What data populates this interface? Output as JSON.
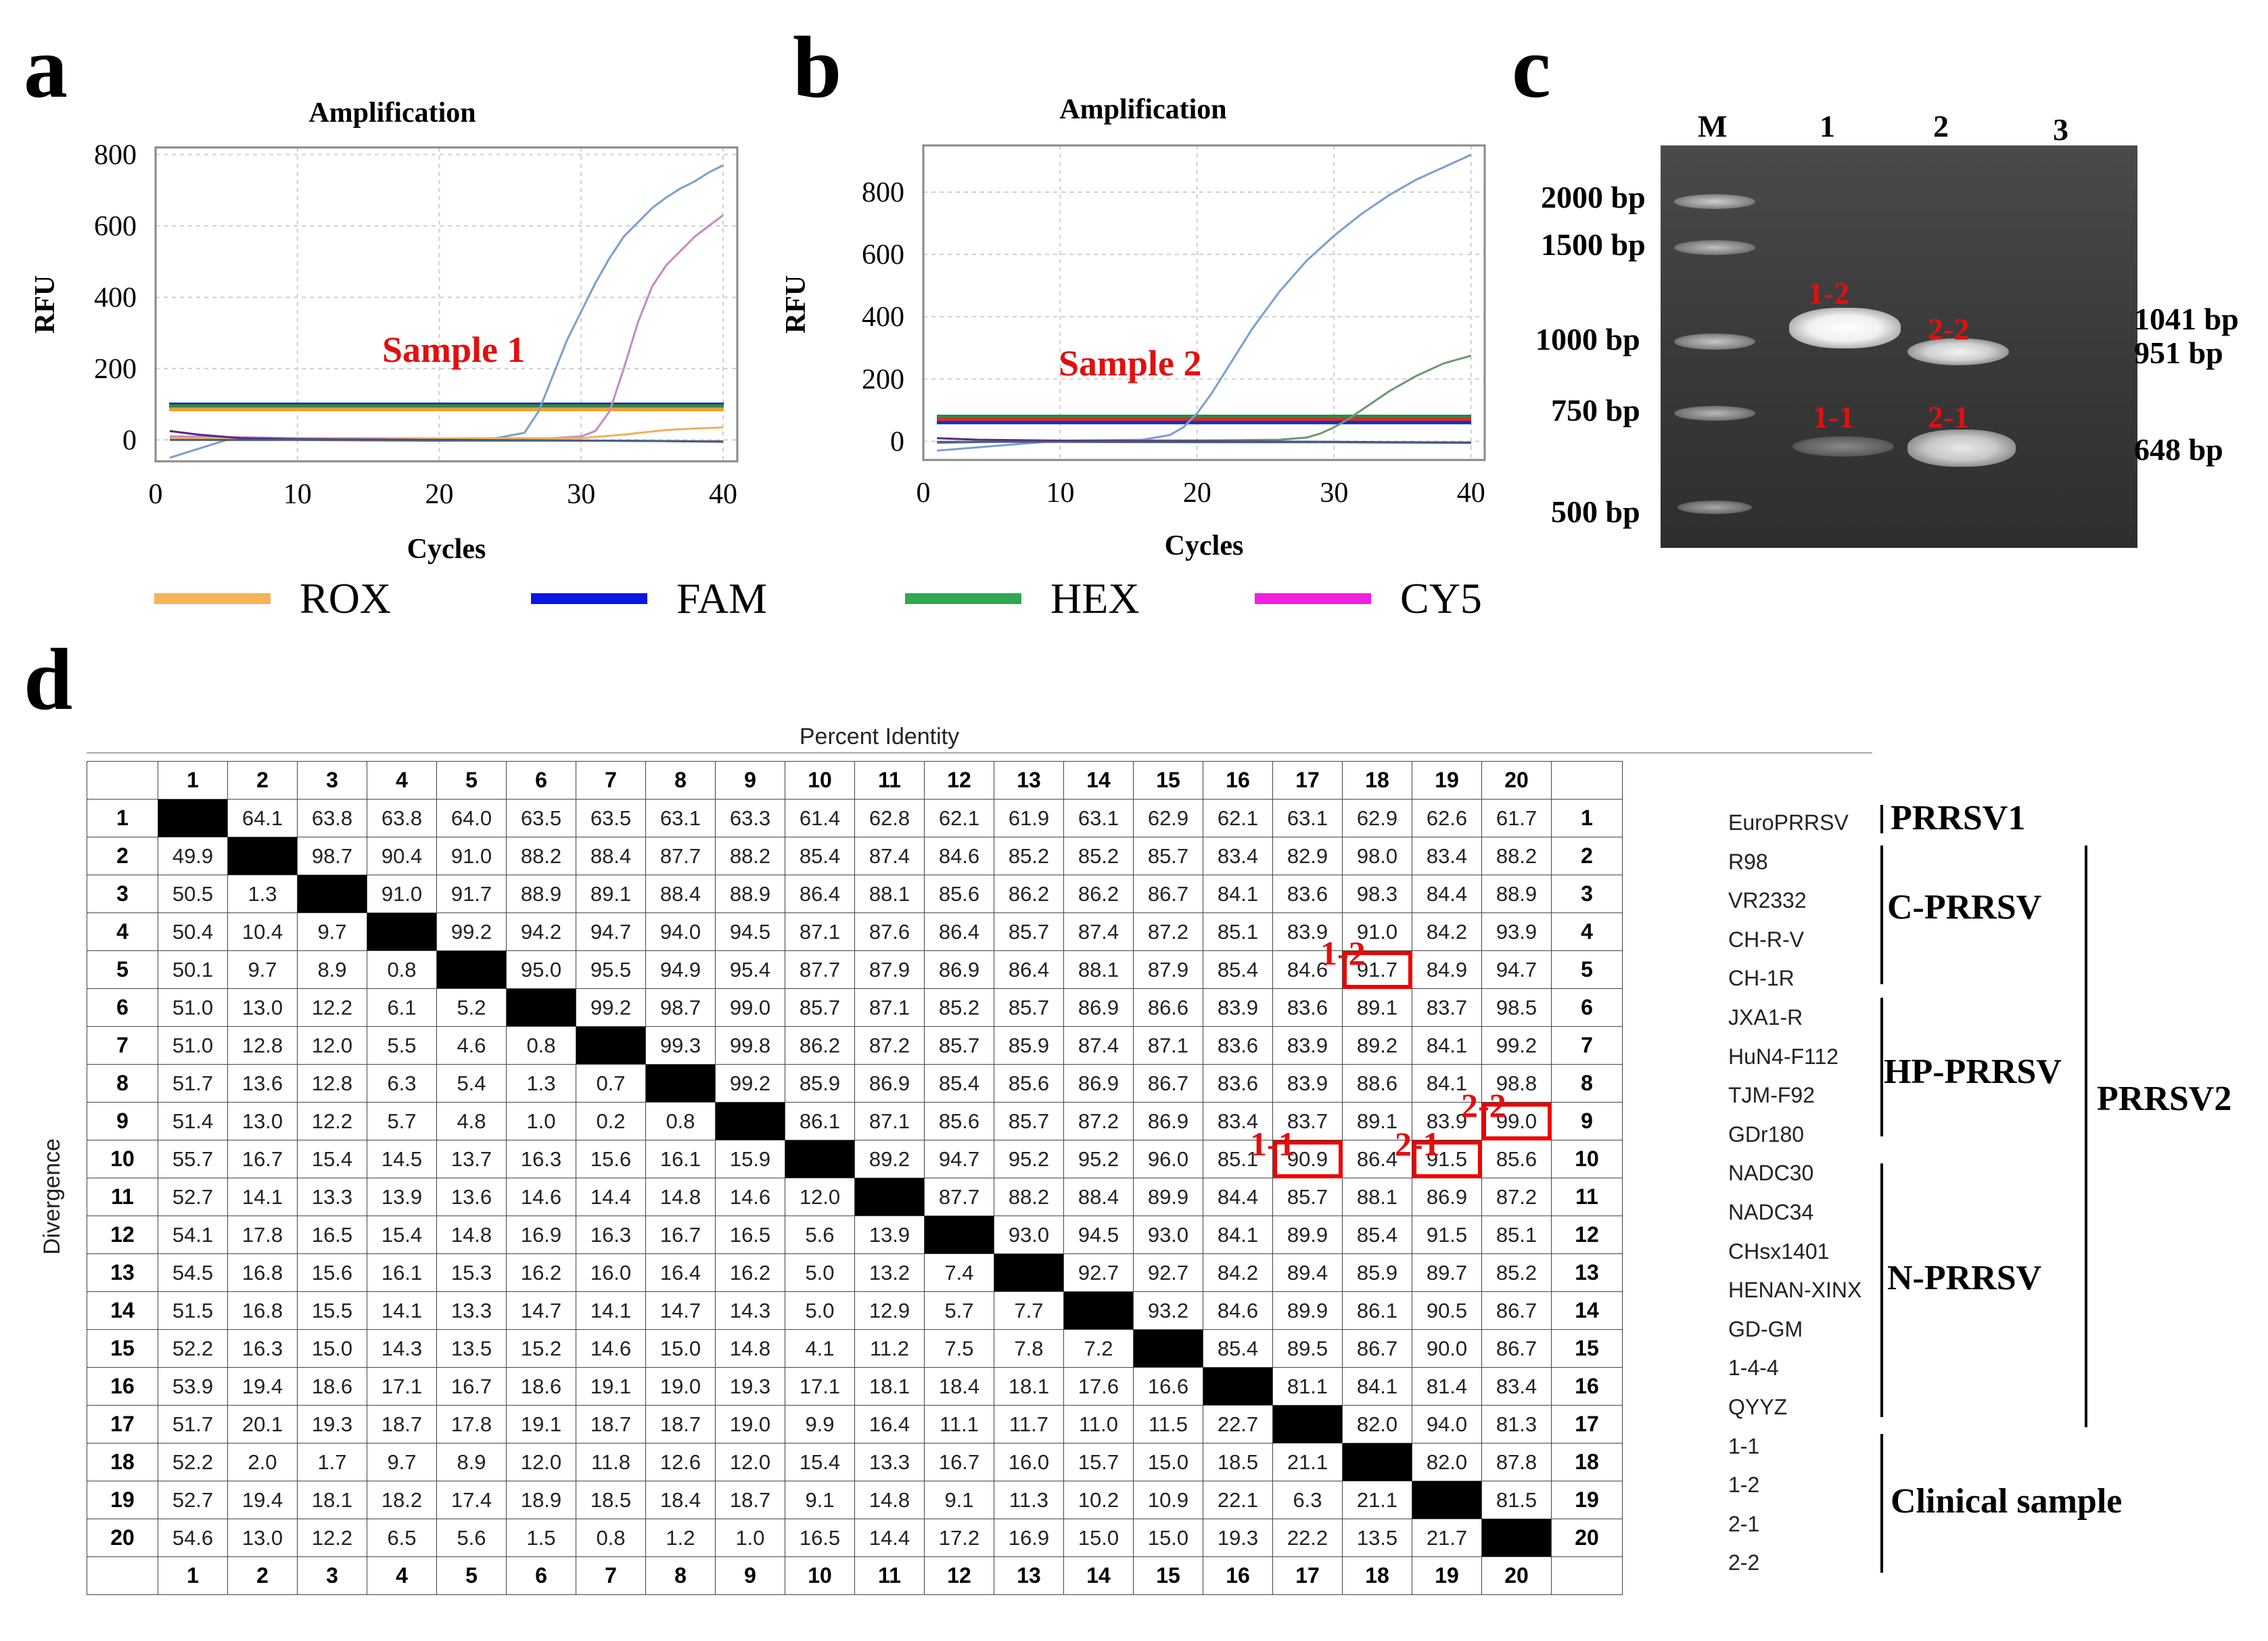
{
  "panels": {
    "a": "a",
    "b": "b",
    "c": "c",
    "d": "d"
  },
  "chart_data": [
    {
      "type": "line",
      "panel": "a",
      "title": "Amplification",
      "xlabel": "Cycles",
      "ylabel": "RFU",
      "xlim": [
        0,
        41
      ],
      "ylim": [
        -60,
        820
      ],
      "xticks": [
        0,
        10,
        20,
        30,
        40
      ],
      "yticks": [
        0,
        200,
        400,
        600,
        800
      ],
      "annotation": "Sample 1",
      "thresholds": [
        {
          "name": "threshold-blue",
          "y": 100,
          "color": "#1a2fb5"
        },
        {
          "name": "threshold-green",
          "y": 95,
          "color": "#2e8b3e"
        },
        {
          "name": "threshold-orange",
          "y": 85,
          "color": "#f0a030"
        }
      ],
      "series": [
        {
          "name": "blue-curve",
          "color": "#7aa0cc",
          "x": [
            1,
            5,
            10,
            15,
            20,
            24,
            26,
            27,
            28,
            29,
            30,
            31,
            32,
            33,
            34,
            35,
            36,
            37,
            38,
            39,
            40
          ],
          "values": [
            -50,
            0,
            2,
            3,
            3,
            5,
            20,
            80,
            180,
            280,
            360,
            440,
            510,
            570,
            610,
            650,
            680,
            705,
            725,
            750,
            770
          ]
        },
        {
          "name": "pink-curve",
          "color": "#c48ac4",
          "x": [
            1,
            10,
            20,
            28,
            30,
            31,
            32,
            33,
            34,
            35,
            36,
            37,
            38,
            39,
            40
          ],
          "values": [
            10,
            5,
            4,
            5,
            10,
            25,
            80,
            200,
            330,
            430,
            490,
            530,
            570,
            600,
            630
          ]
        },
        {
          "name": "orange-curve",
          "color": "#f0b060",
          "x": [
            1,
            10,
            20,
            30,
            33,
            36,
            38,
            40
          ],
          "values": [
            5,
            3,
            3,
            5,
            15,
            28,
            32,
            35
          ]
        },
        {
          "name": "purple-curve",
          "color": "#552a80",
          "x": [
            1,
            3,
            6,
            10,
            15,
            20,
            25,
            30,
            35,
            40
          ],
          "values": [
            25,
            15,
            5,
            2,
            1,
            0,
            -1,
            -2,
            -3,
            -5
          ]
        },
        {
          "name": "gray-curve",
          "color": "#4a6080",
          "x": [
            1,
            10,
            20,
            30,
            40
          ],
          "values": [
            0,
            0,
            -2,
            -2,
            -4
          ]
        }
      ]
    },
    {
      "type": "line",
      "panel": "b",
      "title": "Amplification",
      "xlabel": "Cycles",
      "ylabel": "RFU",
      "xlim": [
        0,
        41
      ],
      "ylim": [
        -60,
        950
      ],
      "xticks": [
        0,
        10,
        20,
        30,
        40
      ],
      "yticks": [
        0,
        200,
        400,
        600,
        800
      ],
      "annotation": "Sample 2",
      "thresholds": [
        {
          "name": "threshold-green",
          "y": 80,
          "color": "#2e8b3e"
        },
        {
          "name": "threshold-red",
          "y": 70,
          "color": "#d03030"
        },
        {
          "name": "threshold-blue",
          "y": 60,
          "color": "#1a2fb5"
        }
      ],
      "series": [
        {
          "name": "blue-curve",
          "color": "#7aa0cc",
          "x": [
            1,
            10,
            16,
            18,
            19,
            20,
            21,
            22,
            23,
            24,
            26,
            28,
            30,
            32,
            34,
            36,
            38,
            40
          ],
          "values": [
            -30,
            2,
            5,
            20,
            45,
            90,
            150,
            220,
            290,
            360,
            480,
            580,
            660,
            730,
            790,
            840,
            880,
            920
          ]
        },
        {
          "name": "green-curve",
          "color": "#6a9a70",
          "x": [
            1,
            10,
            20,
            26,
            28,
            29,
            30,
            31,
            32,
            34,
            36,
            38,
            40
          ],
          "values": [
            -5,
            2,
            3,
            5,
            12,
            25,
            45,
            70,
            100,
            160,
            210,
            250,
            275
          ]
        },
        {
          "name": "purple-curve",
          "color": "#552a80",
          "x": [
            1,
            4,
            8,
            12,
            20,
            30,
            40
          ],
          "values": [
            10,
            5,
            3,
            1,
            0,
            -2,
            -4
          ]
        },
        {
          "name": "gray-curve",
          "color": "#4a6080",
          "x": [
            1,
            10,
            20,
            30,
            40
          ],
          "values": [
            -2,
            -2,
            -3,
            -3,
            -5
          ]
        }
      ]
    }
  ],
  "legend": [
    {
      "label": "ROX",
      "color": "#f4b457"
    },
    {
      "label": "FAM",
      "color": "#0a17e0"
    },
    {
      "label": "HEX",
      "color": "#2fa84f"
    },
    {
      "label": "CY5",
      "color": "#f020e0"
    }
  ],
  "gel": {
    "lanes": [
      "M",
      "1",
      "2",
      "3"
    ],
    "marker_sizes": [
      "2000 bp",
      "1500 bp",
      "1000 bp",
      "750 bp",
      "500 bp"
    ],
    "band_sizes": [
      "1041 bp",
      "951 bp",
      "648 bp"
    ],
    "band_labels": [
      "1-2",
      "2-2",
      "1-1",
      "2-1"
    ]
  },
  "matrix": {
    "title": "Percent Identity",
    "side_label": "Divergence",
    "col_headers": [
      "1",
      "2",
      "3",
      "4",
      "5",
      "6",
      "7",
      "8",
      "9",
      "10",
      "11",
      "12",
      "13",
      "14",
      "15",
      "16",
      "17",
      "18",
      "19",
      "20"
    ],
    "rows": [
      [
        "",
        "64.1",
        "63.8",
        "63.8",
        "64.0",
        "63.5",
        "63.5",
        "63.1",
        "63.3",
        "61.4",
        "62.8",
        "62.1",
        "61.9",
        "63.1",
        "62.9",
        "62.1",
        "63.1",
        "62.9",
        "62.6",
        "61.7"
      ],
      [
        "49.9",
        "",
        "98.7",
        "90.4",
        "91.0",
        "88.2",
        "88.4",
        "87.7",
        "88.2",
        "85.4",
        "87.4",
        "84.6",
        "85.2",
        "85.2",
        "85.7",
        "83.4",
        "82.9",
        "98.0",
        "83.4",
        "88.2"
      ],
      [
        "50.5",
        "1.3",
        "",
        "91.0",
        "91.7",
        "88.9",
        "89.1",
        "88.4",
        "88.9",
        "86.4",
        "88.1",
        "85.6",
        "86.2",
        "86.2",
        "86.7",
        "84.1",
        "83.6",
        "98.3",
        "84.4",
        "88.9"
      ],
      [
        "50.4",
        "10.4",
        "9.7",
        "",
        "99.2",
        "94.2",
        "94.7",
        "94.0",
        "94.5",
        "87.1",
        "87.6",
        "86.4",
        "85.7",
        "87.4",
        "87.2",
        "85.1",
        "83.9",
        "91.0",
        "84.2",
        "93.9"
      ],
      [
        "50.1",
        "9.7",
        "8.9",
        "0.8",
        "",
        "95.0",
        "95.5",
        "94.9",
        "95.4",
        "87.7",
        "87.9",
        "86.9",
        "86.4",
        "88.1",
        "87.9",
        "85.4",
        "84.6",
        "91.7",
        "84.9",
        "94.7"
      ],
      [
        "51.0",
        "13.0",
        "12.2",
        "6.1",
        "5.2",
        "",
        "99.2",
        "98.7",
        "99.0",
        "85.7",
        "87.1",
        "85.2",
        "85.7",
        "86.9",
        "86.6",
        "83.9",
        "83.6",
        "89.1",
        "83.7",
        "98.5"
      ],
      [
        "51.0",
        "12.8",
        "12.0",
        "5.5",
        "4.6",
        "0.8",
        "",
        "99.3",
        "99.8",
        "86.2",
        "87.2",
        "85.7",
        "85.9",
        "87.4",
        "87.1",
        "83.6",
        "83.9",
        "89.2",
        "84.1",
        "99.2"
      ],
      [
        "51.7",
        "13.6",
        "12.8",
        "6.3",
        "5.4",
        "1.3",
        "0.7",
        "",
        "99.2",
        "85.9",
        "86.9",
        "85.4",
        "85.6",
        "86.9",
        "86.7",
        "83.6",
        "83.9",
        "88.6",
        "84.1",
        "98.8"
      ],
      [
        "51.4",
        "13.0",
        "12.2",
        "5.7",
        "4.8",
        "1.0",
        "0.2",
        "0.8",
        "",
        "86.1",
        "87.1",
        "85.6",
        "85.7",
        "87.2",
        "86.9",
        "83.4",
        "83.7",
        "89.1",
        "83.9",
        "99.0"
      ],
      [
        "55.7",
        "16.7",
        "15.4",
        "14.5",
        "13.7",
        "16.3",
        "15.6",
        "16.1",
        "15.9",
        "",
        "89.2",
        "94.7",
        "95.2",
        "95.2",
        "96.0",
        "85.1",
        "90.9",
        "86.4",
        "91.5",
        "85.6"
      ],
      [
        "52.7",
        "14.1",
        "13.3",
        "13.9",
        "13.6",
        "14.6",
        "14.4",
        "14.8",
        "14.6",
        "12.0",
        "",
        "87.7",
        "88.2",
        "88.4",
        "89.9",
        "84.4",
        "85.7",
        "88.1",
        "86.9",
        "87.2"
      ],
      [
        "54.1",
        "17.8",
        "16.5",
        "15.4",
        "14.8",
        "16.9",
        "16.3",
        "16.7",
        "16.5",
        "5.6",
        "13.9",
        "",
        "93.0",
        "94.5",
        "93.0",
        "84.1",
        "89.9",
        "85.4",
        "91.5",
        "85.1"
      ],
      [
        "54.5",
        "16.8",
        "15.6",
        "16.1",
        "15.3",
        "16.2",
        "16.0",
        "16.4",
        "16.2",
        "5.0",
        "13.2",
        "7.4",
        "",
        "92.7",
        "92.7",
        "84.2",
        "89.4",
        "85.9",
        "89.7",
        "85.2"
      ],
      [
        "51.5",
        "16.8",
        "15.5",
        "14.1",
        "13.3",
        "14.7",
        "14.1",
        "14.7",
        "14.3",
        "5.0",
        "12.9",
        "5.7",
        "7.7",
        "",
        "93.2",
        "84.6",
        "89.9",
        "86.1",
        "90.5",
        "86.7"
      ],
      [
        "52.2",
        "16.3",
        "15.0",
        "14.3",
        "13.5",
        "15.2",
        "14.6",
        "15.0",
        "14.8",
        "4.1",
        "11.2",
        "7.5",
        "7.8",
        "7.2",
        "",
        "85.4",
        "89.5",
        "86.7",
        "90.0",
        "86.7"
      ],
      [
        "53.9",
        "19.4",
        "18.6",
        "17.1",
        "16.7",
        "18.6",
        "19.1",
        "19.0",
        "19.3",
        "17.1",
        "18.1",
        "18.4",
        "18.1",
        "17.6",
        "16.6",
        "",
        "81.1",
        "84.1",
        "81.4",
        "83.4"
      ],
      [
        "51.7",
        "20.1",
        "19.3",
        "18.7",
        "17.8",
        "19.1",
        "18.7",
        "18.7",
        "19.0",
        "9.9",
        "16.4",
        "11.1",
        "11.7",
        "11.0",
        "11.5",
        "22.7",
        "",
        "82.0",
        "94.0",
        "81.3"
      ],
      [
        "52.2",
        "2.0",
        "1.7",
        "9.7",
        "8.9",
        "12.0",
        "11.8",
        "12.6",
        "12.0",
        "15.4",
        "13.3",
        "16.7",
        "16.0",
        "15.7",
        "15.0",
        "18.5",
        "21.1",
        "",
        "82.0",
        "87.8"
      ],
      [
        "52.7",
        "19.4",
        "18.1",
        "18.2",
        "17.4",
        "18.9",
        "18.5",
        "18.4",
        "18.7",
        "9.1",
        "14.8",
        "9.1",
        "11.3",
        "10.2",
        "10.9",
        "22.1",
        "6.3",
        "21.1",
        "",
        "81.5"
      ],
      [
        "54.6",
        "13.0",
        "12.2",
        "6.5",
        "5.6",
        "1.5",
        "0.8",
        "1.2",
        "1.0",
        "16.5",
        "14.4",
        "17.2",
        "16.9",
        "15.0",
        "15.0",
        "19.3",
        "22.2",
        "13.5",
        "21.7",
        ""
      ]
    ],
    "highlights": [
      {
        "row": 5,
        "col": 18,
        "label": "1-2"
      },
      {
        "row": 9,
        "col": 20,
        "label": "2-2"
      },
      {
        "row": 10,
        "col": 17,
        "label": "1-1"
      },
      {
        "row": 10,
        "col": 19,
        "label": "2-1"
      }
    ],
    "strains": [
      "EuroPRRSV",
      "R98",
      "VR2332",
      "CH-R-V",
      "CH-1R",
      "JXA1-R",
      "HuN4-F112",
      "TJM-F92",
      "GDr180",
      "NADC30",
      "NADC34",
      "CHsx1401",
      "HENAN-XINX",
      "GD-GM",
      "1-4-4",
      "QYYZ",
      "1-1",
      "1-2",
      "2-1",
      "2-2"
    ],
    "groups": {
      "prrsv1": "PRRSV1",
      "c_prrsv": "C-PRRSV",
      "hp_prrsv": "HP-PRRSV",
      "n_prrsv": "N-PRRSV",
      "prrsv2": "PRRSV2",
      "clinical": "Clinical sample"
    }
  }
}
